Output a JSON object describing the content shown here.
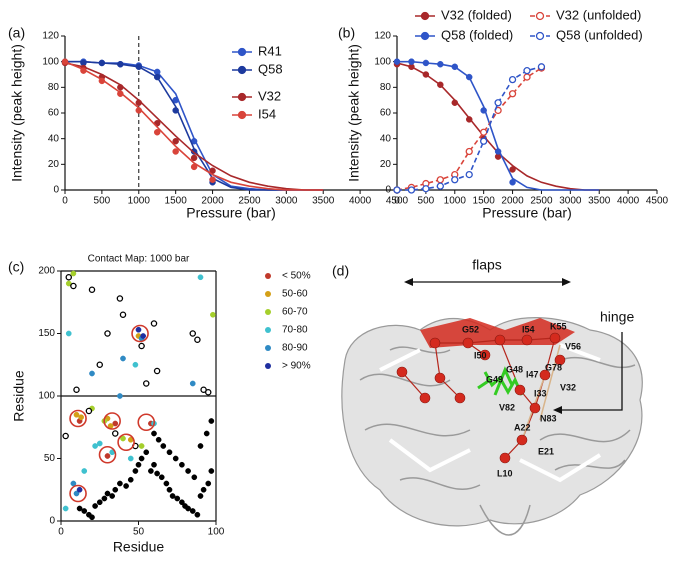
{
  "chart_data": [
    {
      "type": "line",
      "panel": "(a)",
      "xlabel": "Pressure (bar)",
      "ylabel": "Intensity (peak height)",
      "xlim": [
        0,
        4500
      ],
      "xticks": [
        0,
        500,
        1000,
        1500,
        2000,
        2500,
        3000,
        3500,
        4000,
        4500
      ],
      "ylim": [
        0,
        120
      ],
      "yticks": [
        0,
        20,
        40,
        60,
        80,
        100,
        120
      ],
      "vline": 1000,
      "fit_x": [
        0,
        250,
        500,
        750,
        1000,
        1250,
        1500,
        1750,
        2000,
        2250,
        2500,
        2750,
        3000,
        3250,
        3500
      ],
      "series": [
        {
          "name": "R41",
          "color": "#2f55c8",
          "marker": "filled",
          "line_style": "solid",
          "x": [
            0,
            250,
            500,
            750,
            1000,
            1250,
            1500,
            1750,
            2000
          ],
          "values": [
            100,
            100,
            99,
            98,
            97,
            92,
            70,
            38,
            8
          ],
          "fit_values": [
            100,
            100,
            99,
            99,
            97,
            92,
            75,
            40,
            12,
            3,
            1,
            0,
            0,
            0,
            0
          ]
        },
        {
          "name": "Q58",
          "color": "#1d3a9e",
          "marker": "filled",
          "line_style": "solid",
          "x": [
            0,
            250,
            500,
            750,
            1000,
            1250,
            1500,
            1750,
            2000
          ],
          "values": [
            100,
            99,
            99,
            98,
            96,
            88,
            62,
            30,
            6
          ],
          "fit_values": [
            100,
            100,
            99,
            98,
            96,
            88,
            65,
            32,
            9,
            2,
            0,
            0,
            0,
            0,
            0
          ]
        },
        {
          "name": "V32",
          "color": "#a8282a",
          "marker": "filled",
          "line_style": "solid",
          "x": [
            0,
            250,
            500,
            750,
            1000,
            1250,
            1500,
            1750,
            2000
          ],
          "values": [
            99,
            95,
            88,
            80,
            68,
            52,
            38,
            25,
            15
          ],
          "fit_values": [
            99,
            96,
            90,
            82,
            70,
            56,
            42,
            29,
            19,
            11,
            6,
            3,
            1,
            0,
            0
          ]
        },
        {
          "name": "I54",
          "color": "#d9443a",
          "marker": "filled",
          "line_style": "solid",
          "x": [
            0,
            250,
            500,
            750,
            1000,
            1250,
            1500,
            1750,
            2000
          ],
          "values": [
            100,
            93,
            85,
            75,
            62,
            45,
            30,
            18,
            8
          ],
          "fit_values": [
            100,
            94,
            86,
            76,
            64,
            49,
            34,
            21,
            12,
            6,
            3,
            1,
            0,
            0,
            0
          ]
        }
      ]
    },
    {
      "type": "line",
      "panel": "(b)",
      "xlabel": "Pressure (bar)",
      "ylabel": "Intensity (peak height)",
      "xlim": [
        0,
        4500
      ],
      "xticks": [
        0,
        500,
        1000,
        1500,
        2000,
        2500,
        3000,
        3500,
        4000,
        4500
      ],
      "ylim": [
        0,
        120
      ],
      "yticks": [
        0,
        20,
        40,
        60,
        80,
        100,
        120
      ],
      "fit_x": [
        0,
        250,
        500,
        750,
        1000,
        1250,
        1500,
        1750,
        2000,
        2250,
        2500,
        2750,
        3000,
        3250,
        3500
      ],
      "series": [
        {
          "name": "V32 (folded)",
          "color": "#a8282a",
          "marker": "filled",
          "line_style": "solid",
          "x": [
            0,
            250,
            500,
            750,
            1000,
            1250,
            1500,
            1750,
            2000
          ],
          "values": [
            98,
            96,
            90,
            82,
            68,
            55,
            40,
            26,
            16
          ],
          "fit_values": [
            99,
            96,
            90,
            82,
            70,
            56,
            42,
            29,
            19,
            11,
            6,
            3,
            1,
            0,
            0
          ]
        },
        {
          "name": "Q58 (folded)",
          "color": "#2f55c8",
          "marker": "filled",
          "line_style": "solid",
          "x": [
            0,
            250,
            500,
            750,
            1000,
            1250,
            1500,
            1750,
            2000
          ],
          "values": [
            100,
            100,
            99,
            98,
            96,
            88,
            62,
            30,
            6
          ],
          "fit_values": [
            100,
            100,
            99,
            98,
            96,
            88,
            65,
            32,
            9,
            2,
            0,
            0,
            0,
            0,
            0
          ]
        },
        {
          "name": "V32 (unfolded)",
          "color": "#d9443a",
          "marker": "open",
          "line_style": "dashed",
          "x": [
            0,
            250,
            500,
            750,
            1000,
            1250,
            1500,
            1750,
            2000,
            2250,
            2500
          ],
          "values": [
            0,
            2,
            5,
            8,
            12,
            30,
            45,
            62,
            75,
            88,
            95
          ]
        },
        {
          "name": "Q58 (unfolded)",
          "color": "#2f55c8",
          "marker": "open",
          "line_style": "dashed",
          "x": [
            0,
            250,
            500,
            750,
            1000,
            1250,
            1500,
            1750,
            2000,
            2250,
            2500
          ],
          "values": [
            0,
            0,
            1,
            3,
            8,
            12,
            38,
            68,
            86,
            93,
            96
          ]
        }
      ]
    },
    {
      "type": "scatter",
      "panel": "(c)",
      "title": "Contact Map: 1000 bar",
      "xlabel": "Residue",
      "ylabel": "Residue",
      "xlim": [
        0,
        100
      ],
      "xticks": [
        0,
        50,
        100
      ],
      "ylim": [
        0,
        200
      ],
      "yticks": [
        0,
        50,
        100,
        150,
        200
      ],
      "divider": 100,
      "series": [
        {
          "name": "< 50%",
          "color": "#c0392b",
          "marker": "filled",
          "x": [
            12,
            35,
            58,
            30
          ],
          "y": [
            80,
            78,
            78,
            52
          ]
        },
        {
          "name": "50-60",
          "color": "#d4a017",
          "marker": "filled",
          "x": [
            10,
            30,
            32,
            45,
            50,
            13
          ],
          "y": [
            85,
            82,
            76,
            65,
            148,
            83
          ]
        },
        {
          "name": "60-70",
          "color": "#a5cf2c",
          "marker": "filled",
          "x": [
            8,
            28,
            40,
            52,
            98,
            5,
            20
          ],
          "y": [
            198,
            80,
            66,
            60,
            165,
            190,
            90
          ]
        },
        {
          "name": "70-80",
          "color": "#3fc1cf",
          "marker": "filled",
          "x": [
            3,
            15,
            22,
            33,
            45,
            60,
            90,
            5,
            48,
            25
          ],
          "y": [
            10,
            40,
            60,
            55,
            50,
            78,
            195,
            150,
            125,
            62
          ]
        },
        {
          "name": "80-90",
          "color": "#2f8ac4",
          "marker": "filled",
          "x": [
            10,
            20,
            38,
            52,
            85,
            8,
            40
          ],
          "y": [
            22,
            118,
            100,
            146,
            110,
            30,
            130
          ]
        },
        {
          "name": "> 90%",
          "color": "#1f2fa0",
          "marker": "filled",
          "x": [
            12,
            50,
            53
          ],
          "y": [
            25,
            153,
            148
          ]
        },
        {
          "color": "#000000",
          "marker": "filled",
          "x": [
            12,
            15,
            18,
            20,
            22,
            25,
            28,
            30,
            33,
            35,
            38,
            42,
            45,
            48,
            50,
            52,
            55,
            58,
            60,
            62,
            65,
            68,
            70,
            72,
            75,
            78,
            80,
            82,
            85,
            88,
            90,
            92,
            95,
            97,
            60,
            63,
            66,
            70,
            74,
            78,
            82,
            86,
            90,
            94,
            97
          ],
          "y": [
            10,
            8,
            5,
            3,
            12,
            15,
            18,
            22,
            20,
            25,
            30,
            28,
            33,
            40,
            45,
            50,
            55,
            40,
            45,
            38,
            35,
            30,
            25,
            20,
            18,
            15,
            12,
            10,
            8,
            5,
            20,
            25,
            30,
            40,
            70,
            65,
            60,
            55,
            50,
            45,
            40,
            35,
            60,
            70,
            80
          ]
        },
        {
          "color": "#000000",
          "marker": "open",
          "x": [
            5,
            8,
            20,
            38,
            40,
            52,
            60,
            85,
            88,
            92,
            10,
            25,
            30,
            55,
            62,
            18,
            35,
            48,
            95,
            3
          ],
          "y": [
            195,
            188,
            185,
            178,
            165,
            140,
            158,
            150,
            145,
            105,
            105,
            125,
            150,
            110,
            120,
            88,
            70,
            60,
            103,
            68
          ]
        }
      ],
      "highlights": {
        "color": "#d0392b",
        "x": [
          11,
          33,
          55,
          30,
          42,
          11,
          51
        ],
        "y": [
          82,
          80,
          79,
          53,
          63,
          22,
          150
        ]
      }
    }
  ],
  "structure": {
    "panel": "(d)",
    "flaps": "flaps",
    "hinge": "hinge",
    "residues": [
      "G52",
      "I54",
      "K55",
      "I50",
      "V56",
      "G48",
      "I47",
      "G78",
      "G49",
      "I33",
      "V32",
      "V82",
      "N83",
      "A22",
      "E21",
      "L10"
    ]
  }
}
